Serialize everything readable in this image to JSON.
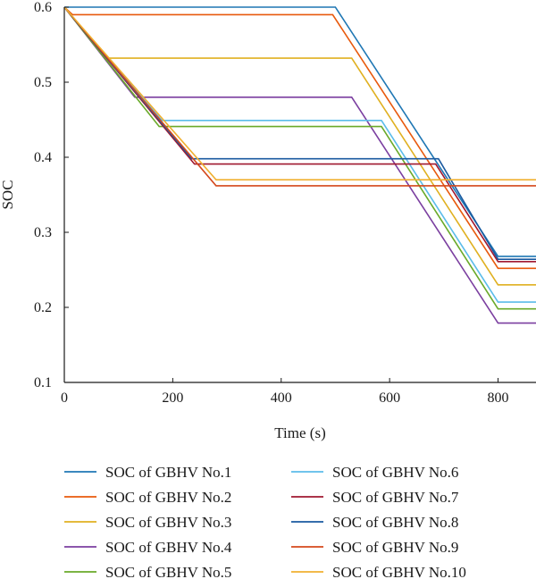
{
  "chart_data": {
    "type": "line",
    "title": "",
    "xlabel": "Time (s)",
    "ylabel": "SOC",
    "xlim": [
      0,
      870
    ],
    "ylim": [
      0.1,
      0.6
    ],
    "x_ticks": [
      0,
      200,
      400,
      600,
      800
    ],
    "y_ticks": [
      0.1,
      0.2,
      0.3,
      0.4,
      0.5,
      0.6
    ],
    "grid": false,
    "legend_position": "bottom",
    "series": [
      {
        "name": "SOC of GBHV No.1",
        "color": "#1f77b4",
        "x": [
          0,
          500,
          800,
          870
        ],
        "y": [
          0.6,
          0.6,
          0.268,
          0.268
        ]
      },
      {
        "name": "SOC of GBHV No.2",
        "color": "#e8590c",
        "x": [
          0,
          15,
          495,
          800,
          870
        ],
        "y": [
          0.6,
          0.59,
          0.59,
          0.252,
          0.252
        ]
      },
      {
        "name": "SOC of GBHV No.3",
        "color": "#e0b020",
        "x": [
          0,
          80,
          530,
          800,
          870
        ],
        "y": [
          0.6,
          0.532,
          0.532,
          0.23,
          0.23
        ]
      },
      {
        "name": "SOC of GBHV No.4",
        "color": "#7b3fa0",
        "x": [
          0,
          130,
          530,
          800,
          870
        ],
        "y": [
          0.6,
          0.48,
          0.48,
          0.179,
          0.179
        ]
      },
      {
        "name": "SOC of GBHV No.5",
        "color": "#6aaa2a",
        "x": [
          0,
          175,
          585,
          800,
          870
        ],
        "y": [
          0.6,
          0.441,
          0.441,
          0.198,
          0.198
        ]
      },
      {
        "name": "SOC of GBHV No.6",
        "color": "#5bbcea",
        "x": [
          0,
          180,
          585,
          800,
          870
        ],
        "y": [
          0.6,
          0.449,
          0.449,
          0.207,
          0.207
        ]
      },
      {
        "name": "SOC of GBHV No.7",
        "color": "#a01830",
        "x": [
          0,
          240,
          685,
          800,
          870
        ],
        "y": [
          0.6,
          0.391,
          0.391,
          0.261,
          0.261
        ]
      },
      {
        "name": "SOC of GBHV No.8",
        "color": "#1a5aa0",
        "x": [
          0,
          235,
          690,
          800,
          870
        ],
        "y": [
          0.6,
          0.398,
          0.398,
          0.264,
          0.264
        ]
      },
      {
        "name": "SOC of GBHV No.9",
        "color": "#d4481c",
        "x": [
          0,
          280,
          870
        ],
        "y": [
          0.6,
          0.362,
          0.362
        ]
      },
      {
        "name": "SOC of GBHV No.10",
        "color": "#f0b030",
        "x": [
          0,
          280,
          870
        ],
        "y": [
          0.6,
          0.37,
          0.37
        ]
      }
    ]
  }
}
